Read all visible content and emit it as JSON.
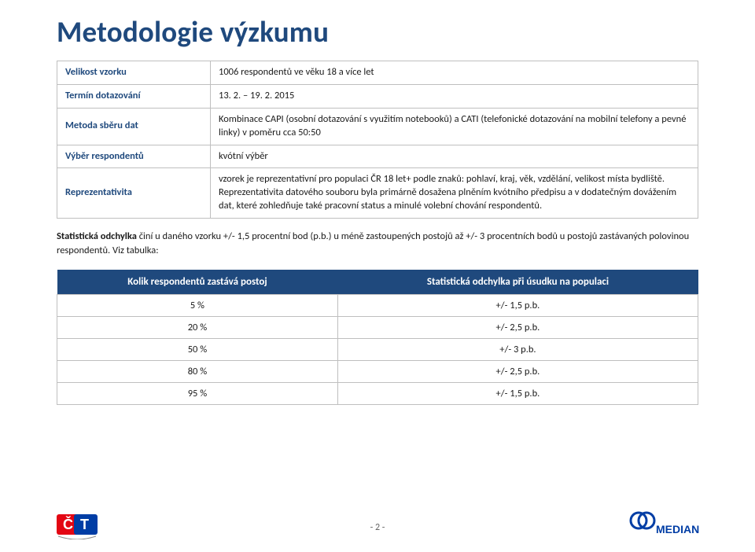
{
  "title": "Metodologie výzkumu",
  "title_color": "#1f497d",
  "info_label_color": "#1f497d",
  "info_rows": [
    {
      "label": "Velikost vzorku",
      "value": "1006 respondentů ve věku 18 a více let"
    },
    {
      "label": "Termín dotazování",
      "value": "13. 2. – 19. 2. 2015"
    },
    {
      "label": "Metoda sběru dat",
      "value": "Kombinace  CAPI (osobní dotazování s využitím notebooků) a CATI (telefonické dotazování na mobilní telefony a pevné linky) v poměru cca 50:50"
    },
    {
      "label": "Výběr respondentů",
      "value": "kvótní výběr"
    },
    {
      "label": "Reprezentativita",
      "value": "vzorek je reprezentativní pro populaci ČR 18 let+  podle znaků: pohlaví, kraj, věk, vzdělání, velikost místa bydliště. Reprezentativita datového souboru byla primárně dosažena plněním kvótního předpisu a v dodatečným dovážením dat, které zohledňuje také pracovní status  a minulé volební chování respondentů."
    }
  ],
  "paragraph_bold": "Statistická odchylka",
  "paragraph_rest": " činí u daného vzorku +/- 1,5 procentní bod (p.b.) u méně zastoupených postojů až +/- 3 procentních bodů u postojů zastávaných polovinou respondentů. Viz tabulka:",
  "err_header_bg": "#1f497d",
  "err_headers": [
    "Kolik respondentů zastává postoj",
    "Statistická odchylka při úsudku na populaci"
  ],
  "err_rows": [
    [
      "5 %",
      "+/- 1,5 p.b."
    ],
    [
      "20 %",
      "+/- 2,5 p.b."
    ],
    [
      "50 %",
      "+/- 3 p.b."
    ],
    [
      "80 %",
      "+/- 2,5 p.b."
    ],
    [
      "95 %",
      "+/- 1,5 p.b."
    ]
  ],
  "page_number": "- 2 -",
  "ct_logo": {
    "red": "#e30613",
    "blue": "#003da5"
  },
  "median_logo": {
    "blue": "#003da5",
    "text": "MEDIAN"
  }
}
